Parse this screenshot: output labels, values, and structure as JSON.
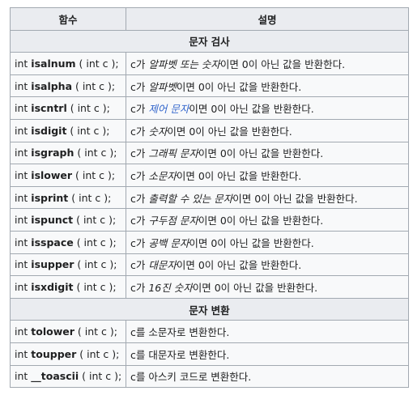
{
  "header": {
    "col_function": "함수",
    "col_description": "설명"
  },
  "sections": [
    {
      "title": "문자 검사",
      "rows": [
        {
          "prefix": "int ",
          "name": "isalnum",
          "args": " ( int c );",
          "d_pre": "c가 ",
          "d_term": "알파벳 또는 숫자",
          "d_post": "이면 0이 아닌 값을 반환한다.",
          "d_link": false
        },
        {
          "prefix": "int ",
          "name": "isalpha",
          "args": " ( int c );",
          "d_pre": "c가 ",
          "d_term": "알파벳",
          "d_post": "이면 0이 아닌 값을 반환한다.",
          "d_link": false
        },
        {
          "prefix": "int ",
          "name": "iscntrl",
          "args": " ( int c );",
          "d_pre": "c가 ",
          "d_term": "제어 문자",
          "d_post": "이면 0이 아닌 값을 반환한다.",
          "d_link": true
        },
        {
          "prefix": "int ",
          "name": "isdigit",
          "args": " ( int c );",
          "d_pre": "c가 ",
          "d_term": "숫자",
          "d_post": "이면 0이 아닌 값을 반환한다.",
          "d_link": false
        },
        {
          "prefix": "int ",
          "name": "isgraph",
          "args": " ( int c );",
          "d_pre": "c가 ",
          "d_term": "그래픽 문자",
          "d_post": "이면 0이 아닌 값을 반환한다.",
          "d_link": false
        },
        {
          "prefix": "int ",
          "name": "islower",
          "args": " ( int c );",
          "d_pre": "c가 ",
          "d_term": "소문자",
          "d_post": "이면 0이 아닌 값을 반환한다.",
          "d_link": false
        },
        {
          "prefix": "int ",
          "name": "isprint",
          "args": " ( int c );",
          "d_pre": "c가 ",
          "d_term": "출력할 수 있는 문자",
          "d_post": "이면 0이 아닌 값을 반환한다.",
          "d_link": false
        },
        {
          "prefix": "int ",
          "name": "ispunct",
          "args": " ( int c );",
          "d_pre": "c가 ",
          "d_term": "구두점 문자",
          "d_post": "이면 0이 아닌 값을 반환한다.",
          "d_link": false
        },
        {
          "prefix": "int ",
          "name": "isspace",
          "args": " ( int c );",
          "d_pre": "c가 ",
          "d_term": "공백 문자",
          "d_post": "이면 0이 아닌 값을 반환한다.",
          "d_link": false
        },
        {
          "prefix": "int ",
          "name": "isupper",
          "args": " ( int c );",
          "d_pre": "c가 ",
          "d_term": "대문자",
          "d_post": "이면 0이 아닌 값을 반환한다.",
          "d_link": false
        },
        {
          "prefix": "int ",
          "name": "isxdigit",
          "args": " ( int c );",
          "d_pre": "c가 ",
          "d_term": "16진 숫자",
          "d_post": "이면 0이 아닌 값을 반환한다.",
          "d_link": false
        }
      ]
    },
    {
      "title": "문자 변환",
      "rows": [
        {
          "prefix": "int ",
          "name": "tolower",
          "args": " ( int c );",
          "d_pre": "c를 소문자로 변환한다.",
          "d_term": "",
          "d_post": "",
          "d_link": false
        },
        {
          "prefix": "int ",
          "name": "toupper",
          "args": " ( int c );",
          "d_pre": "c를 대문자로 변환한다.",
          "d_term": "",
          "d_post": "",
          "d_link": false
        },
        {
          "prefix": "int ",
          "name": "__toascii",
          "args": " ( int c );",
          "d_pre": "c를 아스키 코드로 변환한다.",
          "d_term": "",
          "d_post": "",
          "d_link": false
        }
      ]
    }
  ]
}
